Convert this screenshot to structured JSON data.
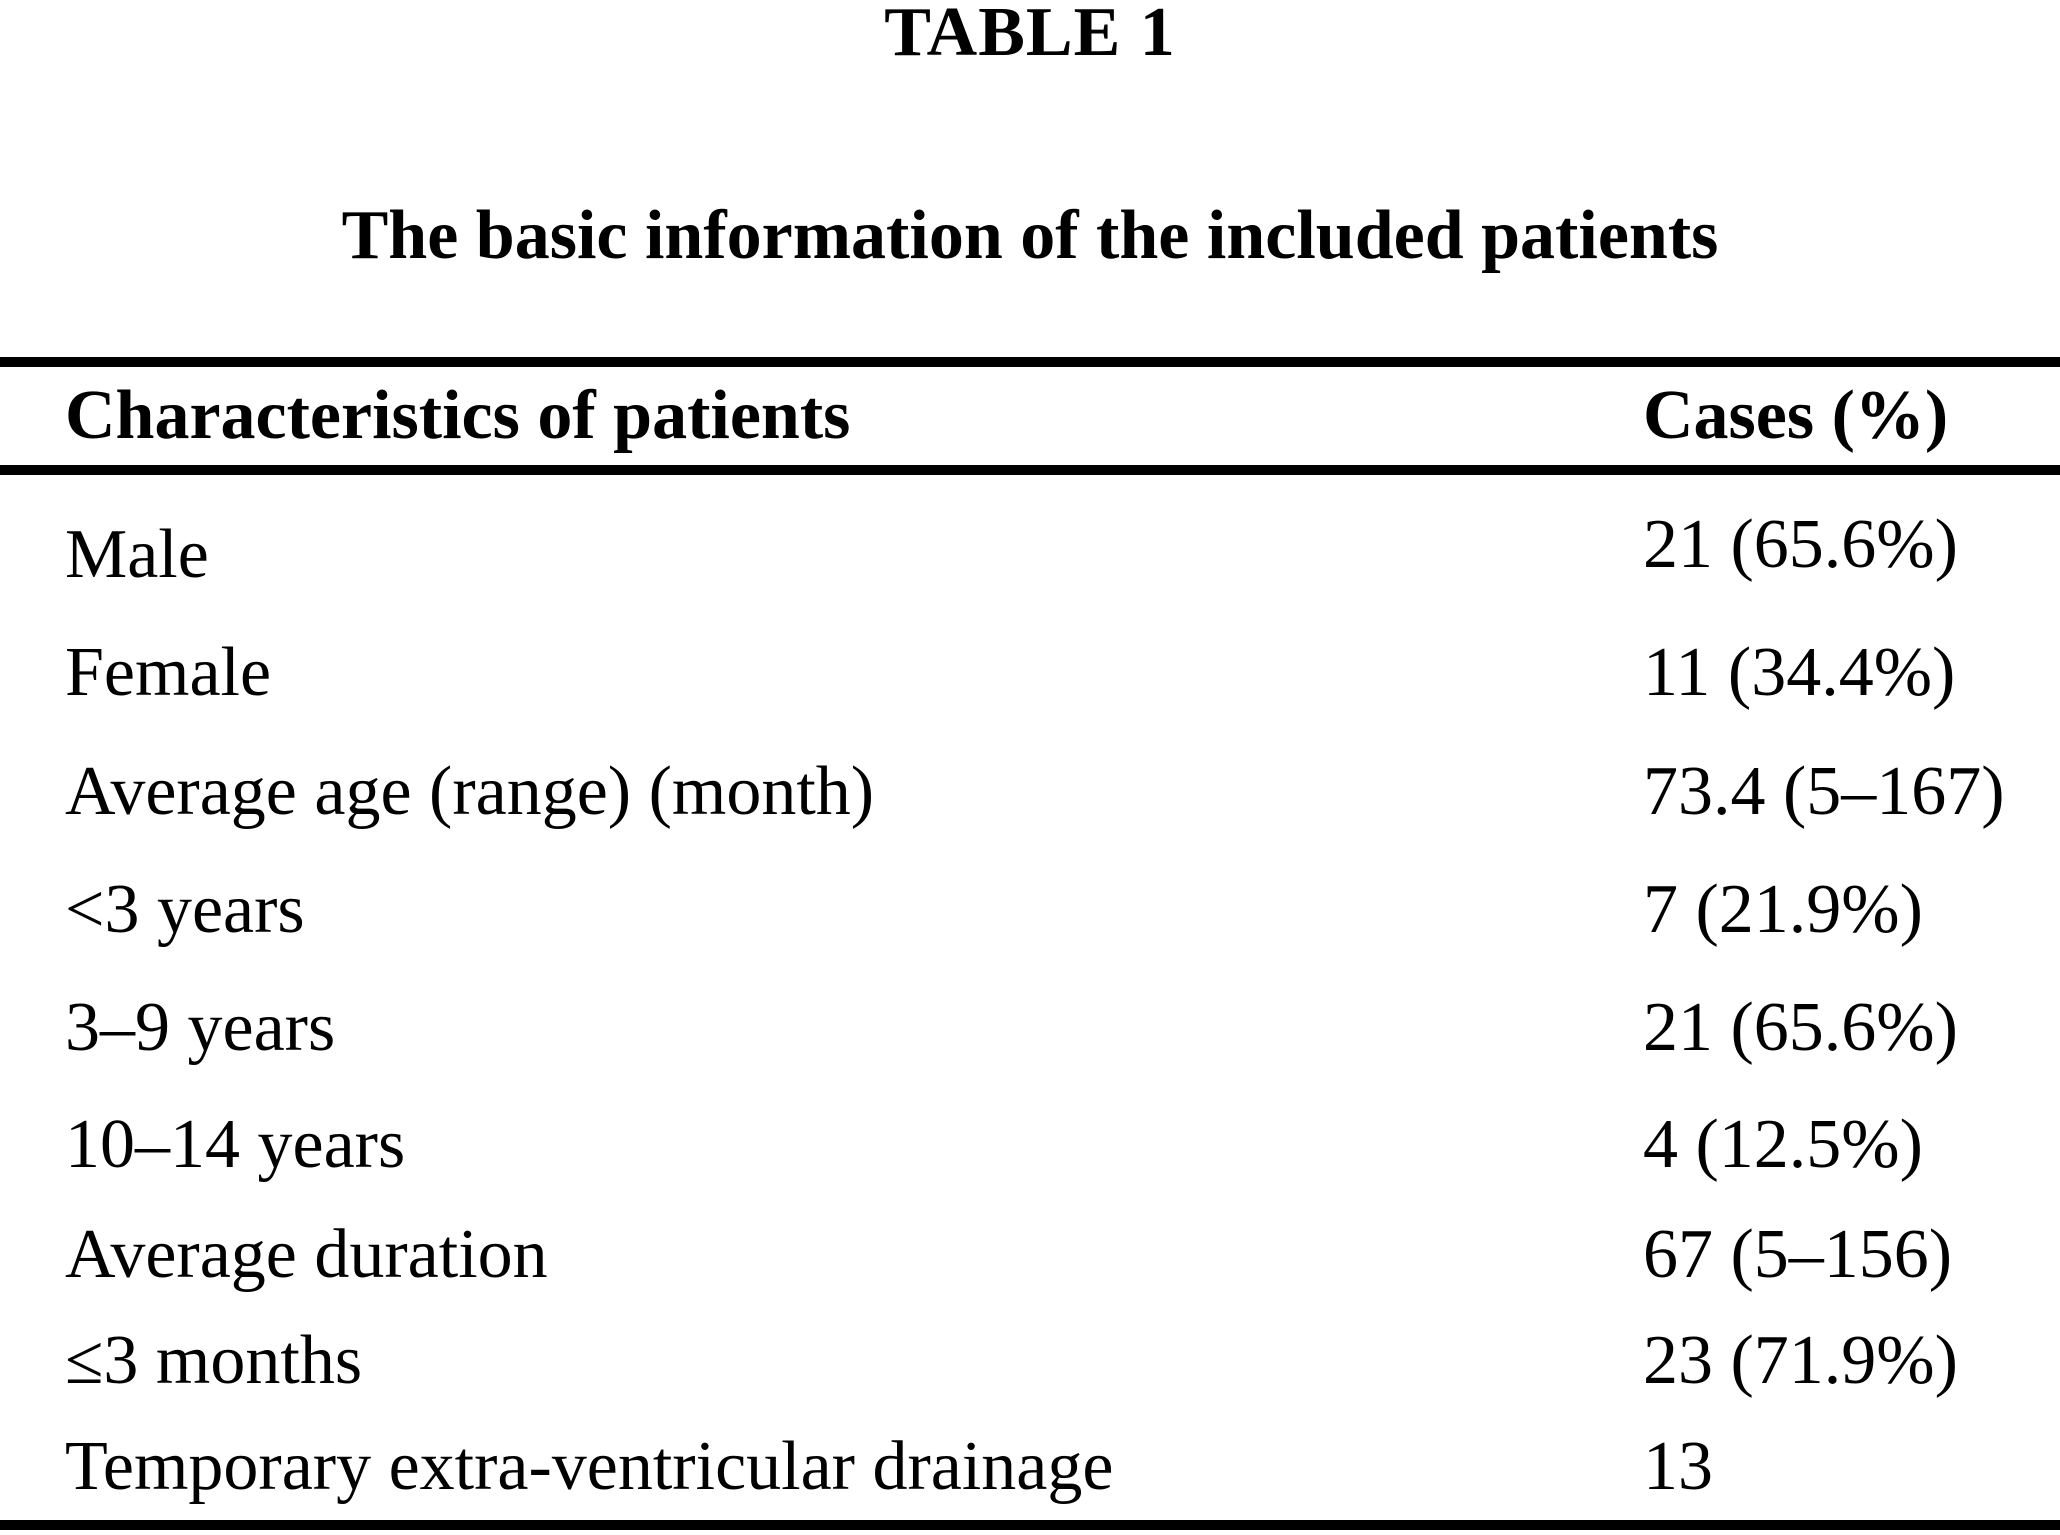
{
  "page": {
    "table_number": "TABLE 1",
    "title": "The basic information of the included patients"
  },
  "table": {
    "columns": [
      {
        "label": "Characteristics of patients"
      },
      {
        "label": "Cases (%)"
      }
    ],
    "rows": [
      {
        "label": "Male",
        "value": "21 (65.6%)"
      },
      {
        "label": "Female",
        "value": "11 (34.4%)"
      },
      {
        "label": "Average age (range) (month)",
        "value": "73.4 (5–167)"
      },
      {
        "label": "<3 years",
        "value": "7 (21.9%)"
      },
      {
        "label": "3–9 years",
        "value": "21 (65.6%)"
      },
      {
        "label": "10–14 years",
        "value": "4 (12.5%)"
      },
      {
        "label": "Average duration",
        "value": "67 (5–156)"
      },
      {
        "label": "≤3 months",
        "value": "23 (71.9%)"
      },
      {
        "label": "Temporary extra-ventricular drainage",
        "value": "13"
      }
    ]
  },
  "colors": {
    "text": "#000000",
    "background": "#ffffff",
    "rule": "#000000"
  }
}
